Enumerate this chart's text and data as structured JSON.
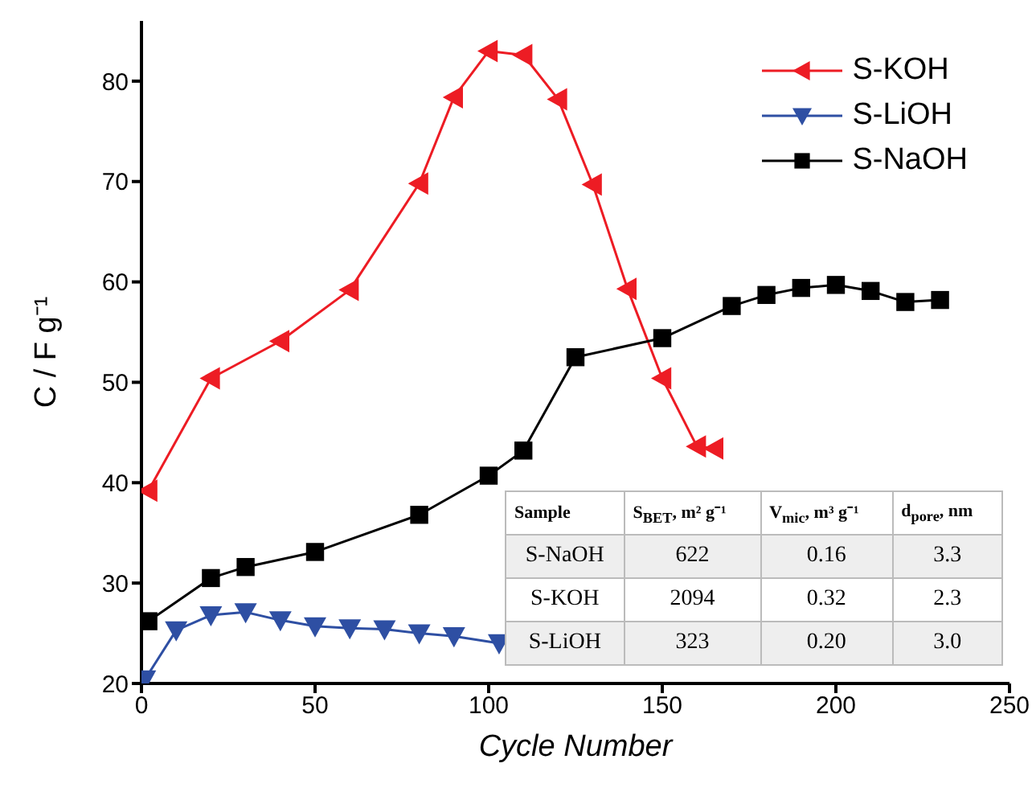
{
  "chart_data": {
    "type": "line",
    "xlabel": "Cycle Number",
    "ylabel": "C / F g⁻¹",
    "xlim": [
      0,
      250
    ],
    "xticks": [
      0,
      50,
      100,
      150,
      200,
      250
    ],
    "ylim": [
      20,
      86
    ],
    "yticks": [
      20,
      30,
      40,
      50,
      60,
      70,
      80
    ],
    "legend": "top right",
    "line_style": "solid",
    "series": [
      {
        "name": "S-KOH",
        "color": "#ed1c24",
        "marker": "triangle-left",
        "x": [
          2,
          20,
          40,
          60,
          80,
          90,
          100,
          110,
          120,
          130,
          140,
          150,
          160,
          165
        ],
        "values": [
          39.2,
          50.4,
          54.1,
          59.2,
          69.8,
          78.4,
          83.0,
          82.6,
          78.2,
          69.7,
          59.3,
          50.4,
          43.6,
          43.4
        ]
      },
      {
        "name": "S-LiOH",
        "color": "#2e4fa3",
        "marker": "triangle-down",
        "x": [
          1,
          10,
          20,
          30,
          40,
          50,
          60,
          70,
          80,
          90,
          103
        ],
        "values": [
          20.4,
          25.3,
          26.8,
          27.1,
          26.3,
          25.7,
          25.5,
          25.4,
          25.0,
          24.7,
          24.0
        ]
      },
      {
        "name": "S-NaOH",
        "color": "#000000",
        "marker": "square",
        "x": [
          2,
          20,
          30,
          50,
          80,
          100,
          110,
          125,
          150,
          170,
          180,
          190,
          200,
          210,
          220,
          230
        ],
        "values": [
          26.2,
          30.5,
          31.6,
          33.1,
          36.8,
          40.7,
          43.2,
          52.5,
          54.4,
          57.6,
          58.7,
          59.4,
          59.7,
          59.1,
          58.0,
          58.2
        ]
      }
    ],
    "annotations": [
      "Sample",
      "S$_{BET}$, m² g⁻¹",
      "V$_{mic}$, m³ g⁻¹",
      "d$_{pore}$, nm",
      "S-NaOH",
      "622",
      "0.16",
      "3.3",
      "S-KOH",
      "2094",
      "0.32",
      "2.3",
      "S-LiOH",
      "323",
      "0.20",
      "3.0"
    ]
  }
}
